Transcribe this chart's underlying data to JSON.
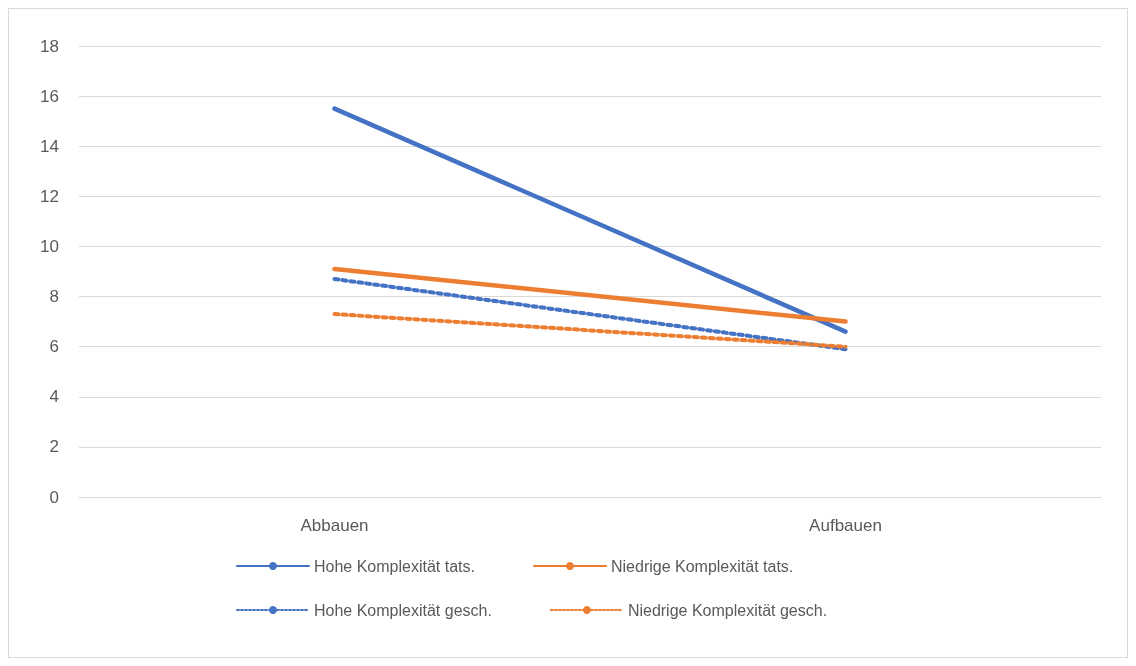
{
  "chart_data": {
    "type": "line",
    "categories": [
      "Abbauen",
      "Aufbauen"
    ],
    "series": [
      {
        "name": "Hohe Komplexität tats.",
        "color": "#4472c4",
        "line_style": "solid",
        "values": [
          15.5,
          6.6
        ]
      },
      {
        "name": "Niedrige Komplexität tats.",
        "color": "#ed7d31",
        "line_style": "solid",
        "values": [
          9.1,
          7.0
        ]
      },
      {
        "name": "Hohe Komplexität gesch.",
        "color": "#4472c4",
        "line_style": "dotted",
        "values": [
          8.7,
          5.9
        ]
      },
      {
        "name": "Niedrige Komplexität gesch.",
        "color": "#ed7d31",
        "line_style": "dotted",
        "values": [
          7.3,
          6.0
        ]
      }
    ],
    "ylim": [
      0,
      18
    ],
    "yticks": [
      0,
      2,
      4,
      6,
      8,
      10,
      12,
      14,
      16,
      18
    ],
    "grid": "y",
    "legend": "bottom",
    "marker": "none"
  }
}
